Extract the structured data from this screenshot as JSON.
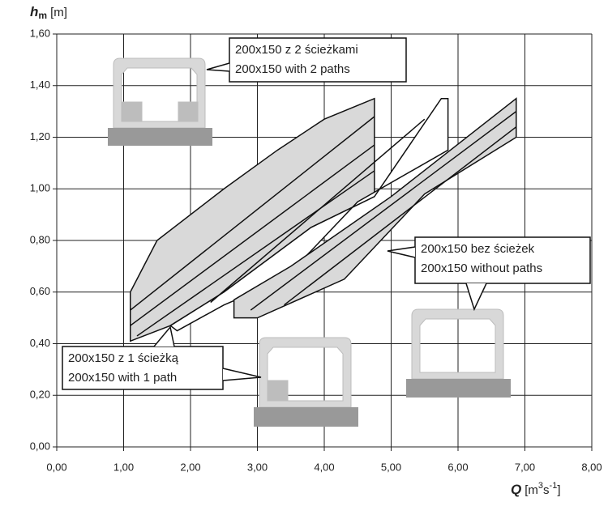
{
  "chart_data": {
    "type": "polygon",
    "y_label": {
      "symbol": "h",
      "subscript": "m",
      "unit": "[m]"
    },
    "x_label": {
      "symbol": "Q",
      "unit_open": "[m",
      "sup1": "3",
      "mid": "s",
      "sup2": "-1",
      "unit_close": "]"
    },
    "xlim": [
      0,
      8
    ],
    "xticks": [
      {
        "value": 0,
        "label": "0,00"
      },
      {
        "value": 1,
        "label": "1,00"
      },
      {
        "value": 2,
        "label": "2,00"
      },
      {
        "value": 3,
        "label": "3,00"
      },
      {
        "value": 4,
        "label": "4,00"
      },
      {
        "value": 5,
        "label": "5,00"
      },
      {
        "value": 6,
        "label": "6,00"
      },
      {
        "value": 7,
        "label": "7,00"
      },
      {
        "value": 8,
        "label": "8,00"
      }
    ],
    "ylim": [
      0,
      1.6
    ],
    "yticks": [
      {
        "value": 0,
        "label": "0,00"
      },
      {
        "value": 0.2,
        "label": "0,20"
      },
      {
        "value": 0.4,
        "label": "0,40"
      },
      {
        "value": 0.6,
        "label": "0,60"
      },
      {
        "value": 0.8,
        "label": "0,80"
      },
      {
        "value": 1.0,
        "label": "1,00"
      },
      {
        "value": 1.2,
        "label": "1,20"
      },
      {
        "value": 1.4,
        "label": "1,40"
      },
      {
        "value": 1.6,
        "label": "1,60"
      }
    ],
    "grid": true,
    "regions": [
      {
        "fill": "#d9d9d9",
        "x": [
          1.1,
          1.5,
          2.5,
          3.3,
          4.0,
          4.75,
          4.75,
          3.8,
          2.5,
          1.7,
          1.1
        ],
        "y": [
          0.6,
          0.8,
          1.0,
          1.15,
          1.27,
          1.35,
          0.97,
          0.85,
          0.6,
          0.47,
          0.41
        ],
        "hatch": [
          {
            "x": [
              1.1,
              4.75
            ],
            "y": [
              0.53,
              1.28
            ]
          },
          {
            "x": [
              1.1,
              4.75
            ],
            "y": [
              0.47,
              1.17
            ]
          },
          {
            "x": [
              1.2,
              4.75
            ],
            "y": [
              0.43,
              1.07
            ]
          }
        ]
      },
      {
        "fill": "#ffffff",
        "x": [
          1.7,
          2.5,
          3.8,
          4.75,
          5.75,
          5.85,
          5.85,
          4.5,
          3.4,
          2.5,
          1.8
        ],
        "y": [
          0.47,
          0.6,
          0.85,
          0.97,
          1.35,
          1.35,
          1.15,
          0.95,
          0.65,
          0.55,
          0.45
        ],
        "hatch": [
          {
            "x": [
              2.3,
              5.5
            ],
            "y": [
              0.56,
              1.27
            ]
          }
        ]
      },
      {
        "fill": "#d9d9d9",
        "x": [
          2.65,
          2.65,
          3.5,
          5.0,
          6.87,
          6.87,
          5.5,
          4.3,
          3.0
        ],
        "y": [
          0.5,
          0.57,
          0.7,
          0.97,
          1.35,
          1.2,
          0.98,
          0.65,
          0.5
        ],
        "hatch": [
          {
            "x": [
              2.9,
              6.87
            ],
            "y": [
              0.53,
              1.3
            ]
          },
          {
            "x": [
              3.4,
              6.87
            ],
            "y": [
              0.55,
              1.24
            ]
          }
        ]
      }
    ],
    "annotations": [
      {
        "lines": [
          "200x150 z 2 ścieżkami",
          "200x150 with 2 paths"
        ]
      },
      {
        "lines": [
          "200x150 bez ścieżek",
          "200x150 without paths"
        ]
      },
      {
        "lines": [
          "200x150 z 1 ścieżką",
          "200x150 with 1 path"
        ]
      }
    ]
  }
}
